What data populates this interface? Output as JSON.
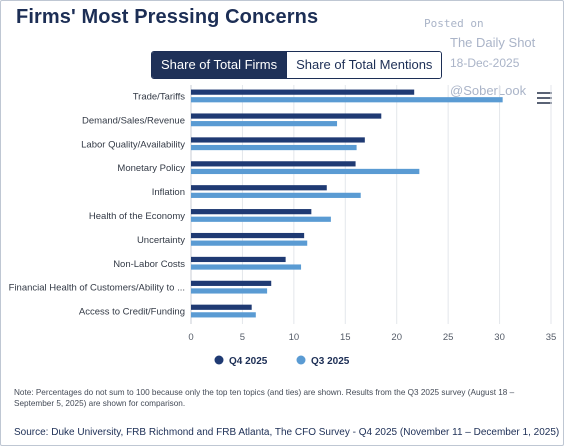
{
  "title": "Firms' Most Pressing Concerns",
  "watermark": {
    "posted": "Posted on",
    "site": "The Daily Shot",
    "date": "18-Dec-2025",
    "handle": "@SoberLook"
  },
  "toggle": {
    "active_label": "Share of Total Firms",
    "inactive_label": "Share of Total Mentions"
  },
  "menu_icon": "hamburger-menu-icon",
  "chart_data": {
    "type": "bar",
    "orientation": "horizontal",
    "categories": [
      "Trade/Tariffs",
      "Demand/Sales/Revenue",
      "Labor Quality/Availability",
      "Monetary Policy",
      "Inflation",
      "Health of the Economy",
      "Uncertainty",
      "Non-Labor Costs",
      "Financial Health of Customers/Ability to ...",
      "Access to Credit/Funding"
    ],
    "series": [
      {
        "name": "Q4 2025",
        "color": "#1f3a73",
        "values": [
          21.7,
          18.5,
          16.9,
          16.0,
          13.2,
          11.7,
          11.0,
          9.2,
          7.8,
          5.9
        ]
      },
      {
        "name": "Q3 2025",
        "color": "#5a9bd3",
        "values": [
          30.3,
          14.2,
          16.1,
          22.2,
          16.5,
          13.6,
          11.3,
          10.7,
          7.4,
          6.3
        ]
      }
    ],
    "xlim": [
      0,
      35
    ],
    "xticks": [
      0,
      5,
      10,
      15,
      20,
      25,
      30,
      35
    ],
    "grid": true,
    "legend_position": "bottom-center"
  },
  "note": "Note: Percentages do not sum to 100 because only the top ten topics (and ties) are shown. Results from the Q3 2025 survey (August 18 – September 5, 2025) are shown for comparison.",
  "source": "Source: Duke University, FRB Richmond and FRB Atlanta, The CFO Survey - Q4 2025 (November 11 – December 1, 2025)"
}
